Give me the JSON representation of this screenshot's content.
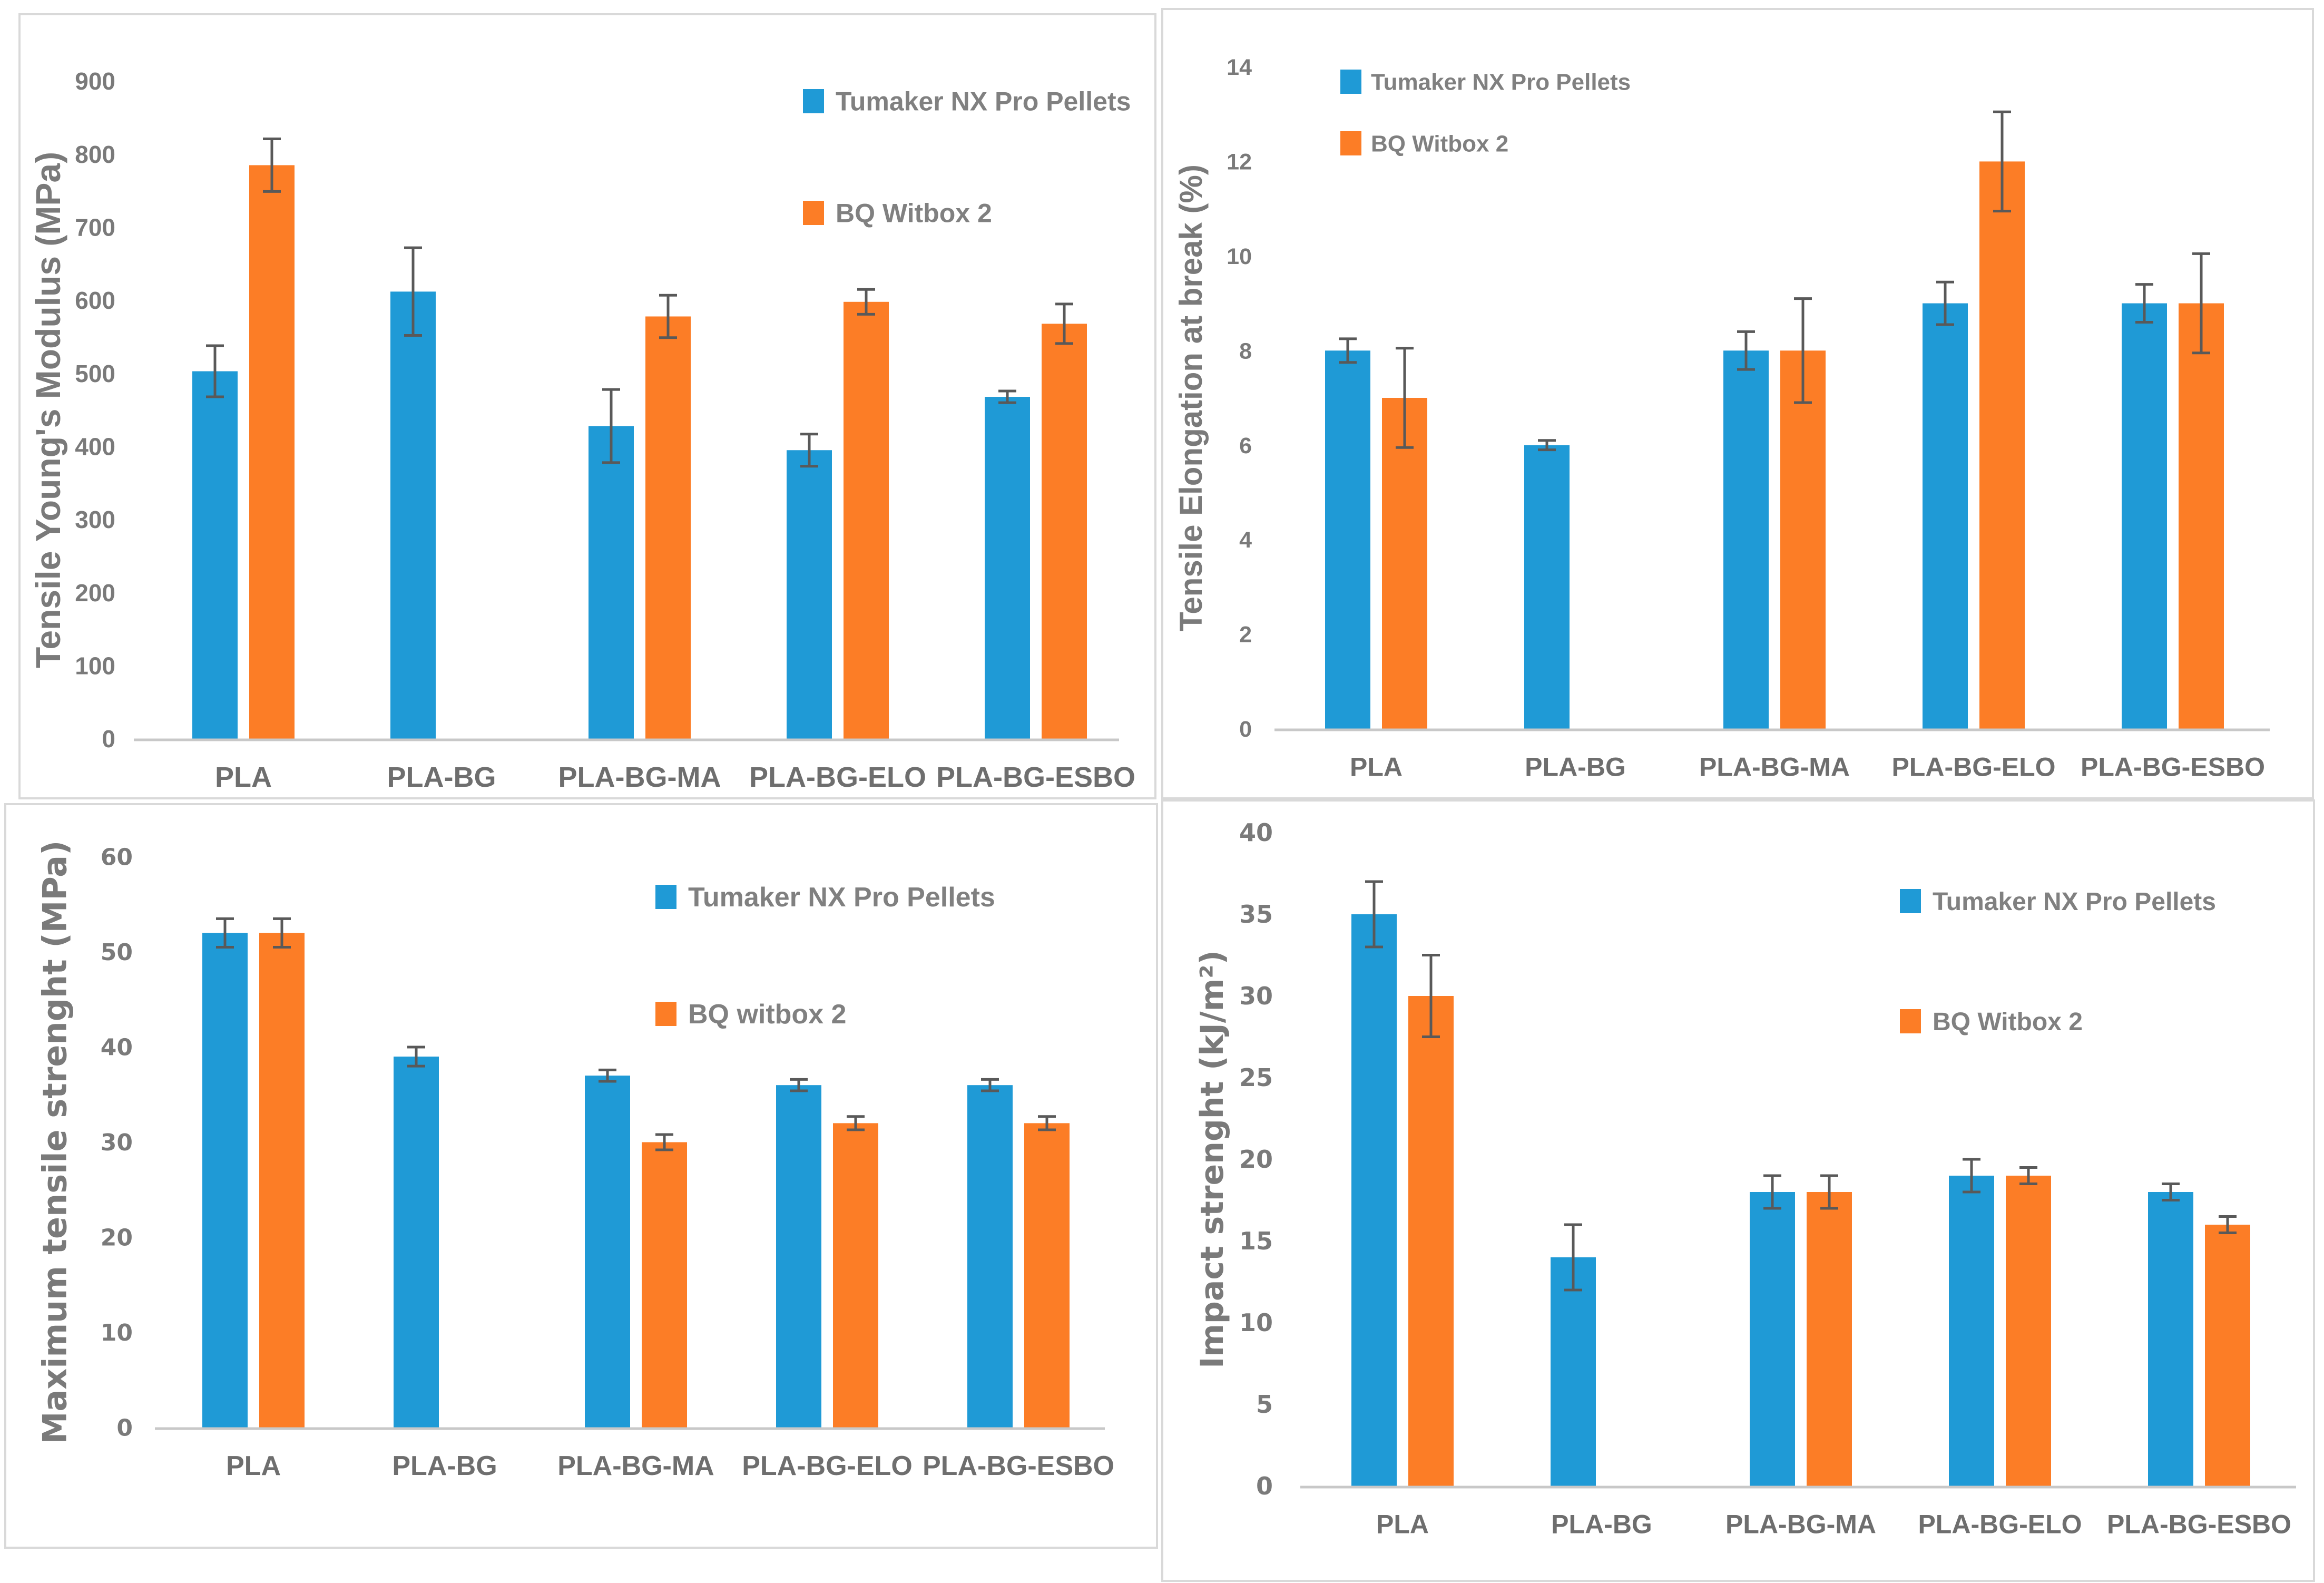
{
  "colors": {
    "series_blue": "#1F9AD6",
    "series_orange": "#FC7D26",
    "tick_text": "#7a7a7a",
    "category_text": "#6e6e6e",
    "legend_text": "#808080",
    "error_bar": "#595959",
    "axis_line": "#c8c8c8",
    "panel_border": "#d9d9d9"
  },
  "categories": [
    "PLA",
    "PLA-BG",
    "PLA-BG-MA",
    "PLA-BG-ELO",
    "PLA-BG-ESBO"
  ],
  "chart_data": [
    {
      "id": "tensile-youngs-modulus",
      "type": "bar",
      "title": "",
      "xlabel": "",
      "ylabel": "Tensile Young's Modulus (MPa)",
      "ylim": [
        0,
        900
      ],
      "ytick_step": 100,
      "grid": false,
      "legend_position": "top-right",
      "categories": [
        "PLA",
        "PLA-BG",
        "PLA-BG-MA",
        "PLA-BG-ELO",
        "PLA-BG-ESBO"
      ],
      "series": [
        {
          "name": "Tumaker NX Pro Pellets",
          "color": "#1F9AD6",
          "values": [
            503,
            612,
            428,
            395,
            468
          ],
          "errors": [
            35,
            60,
            50,
            22,
            8
          ]
        },
        {
          "name": "BQ Witbox 2",
          "color": "#FC7D26",
          "values": [
            785,
            null,
            578,
            598,
            568
          ],
          "errors": [
            36,
            null,
            29,
            17,
            27
          ]
        }
      ]
    },
    {
      "id": "tensile-elongation-at-break",
      "type": "bar",
      "title": "",
      "xlabel": "",
      "ylabel": "Tensile Elongation at break (%)",
      "ylim": [
        0,
        14
      ],
      "ytick_step": 2,
      "grid": false,
      "legend_position": "top-left",
      "categories": [
        "PLA",
        "PLA-BG",
        "PLA-BG-MA",
        "PLA-BG-ELO",
        "PLA-BG-ESBO"
      ],
      "series": [
        {
          "name": "Tumaker NX Pro Pellets",
          "color": "#1F9AD6",
          "values": [
            8,
            6,
            8,
            9,
            9
          ],
          "errors": [
            0.25,
            0.1,
            0.4,
            0.45,
            0.4
          ]
        },
        {
          "name": "BQ Witbox 2",
          "color": "#FC7D26",
          "values": [
            7,
            null,
            8,
            12,
            9
          ],
          "errors": [
            1.05,
            null,
            1.1,
            1.05,
            1.05
          ]
        }
      ]
    },
    {
      "id": "maximum-tensile-strenght",
      "type": "bar",
      "title": "",
      "xlabel": "",
      "ylabel": "Maximum tensile strenght (MPa)",
      "ylim": [
        0,
        60
      ],
      "ytick_step": 10,
      "grid": false,
      "legend_position": "top-right",
      "categories": [
        "PLA",
        "PLA-BG",
        "PLA-BG-MA",
        "PLA-BG-ELO",
        "PLA-BG-ESBO"
      ],
      "series": [
        {
          "name": "Tumaker NX Pro Pellets",
          "color": "#1F9AD6",
          "values": [
            52,
            39,
            37,
            36,
            36
          ],
          "errors": [
            1.5,
            1,
            0.6,
            0.6,
            0.6
          ]
        },
        {
          "name": "BQ witbox 2",
          "color": "#FC7D26",
          "values": [
            52,
            null,
            30,
            32,
            32
          ],
          "errors": [
            1.5,
            null,
            0.8,
            0.7,
            0.7
          ]
        }
      ]
    },
    {
      "id": "impact-strenght",
      "type": "bar",
      "title": "",
      "xlabel": "",
      "ylabel": "Impact strenght (kJ/m²)",
      "ylim": [
        0,
        40
      ],
      "ytick_step": 5,
      "grid": false,
      "legend_position": "top-right",
      "categories": [
        "PLA",
        "PLA-BG",
        "PLA-BG-MA",
        "PLA-BG-ELO",
        "PLA-BG-ESBO"
      ],
      "series": [
        {
          "name": "Tumaker NX Pro Pellets",
          "color": "#1F9AD6",
          "values": [
            35,
            14,
            18,
            19,
            18
          ],
          "errors": [
            2,
            2,
            1,
            1,
            0.5
          ]
        },
        {
          "name": "BQ Witbox 2",
          "color": "#FC7D26",
          "values": [
            30,
            null,
            18,
            19,
            16
          ],
          "errors": [
            2.5,
            null,
            1,
            0.5,
            0.5
          ]
        }
      ]
    }
  ]
}
